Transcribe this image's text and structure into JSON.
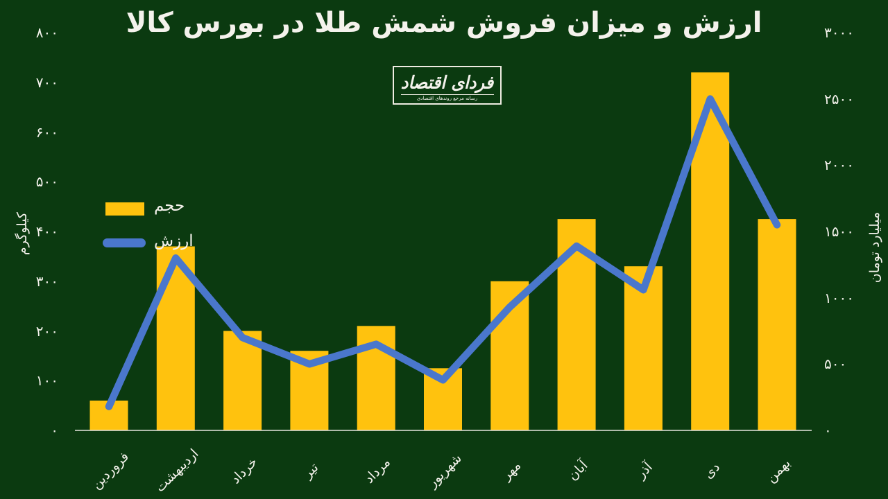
{
  "title": "ارزش و میزان فروش شمش طلا در بورس کالا",
  "logo": {
    "name": "فردای اقتصاد",
    "tagline": "رسانه مرجع روندهای اقتصادی"
  },
  "legend": {
    "items": [
      {
        "label": "حجم",
        "marker": "bar-swatch"
      },
      {
        "label": "ارزش",
        "marker": "line-swatch"
      }
    ]
  },
  "colors": {
    "background": "#0b3a10",
    "bar": "#ffc20e",
    "line": "#4a77cc",
    "text": "#f4f2ec",
    "axis_line": "#e8e6df"
  },
  "chart_data": {
    "type": "bar+line combo",
    "title": "ارزش و میزان فروش شمش طلا در بورس کالا",
    "categories": [
      "فروردین",
      "اردیبهشت",
      "خرداد",
      "تیر",
      "مرداد",
      "شهریور",
      "مهر",
      "آبان",
      "آذر",
      "دی",
      "بهمن"
    ],
    "series": [
      {
        "name": "حجم",
        "type": "bar",
        "axis": "left",
        "unit": "کیلوگرم",
        "values": [
          60,
          370,
          200,
          160,
          210,
          125,
          300,
          425,
          330,
          720,
          425
        ]
      },
      {
        "name": "ارزش",
        "type": "line",
        "axis": "right",
        "unit": "میلیارد تومان",
        "values": [
          180,
          1300,
          700,
          500,
          650,
          380,
          930,
          1390,
          1060,
          2500,
          1550
        ]
      }
    ],
    "left_axis": {
      "label": "کیلوگرم",
      "min": 0,
      "max": 800,
      "tick_step": 100,
      "tick_labels": [
        "۰",
        "۱۰۰",
        "۲۰۰",
        "۳۰۰",
        "۴۰۰",
        "۵۰۰",
        "۶۰۰",
        "۷۰۰",
        "۸۰۰"
      ]
    },
    "right_axis": {
      "label": "میلیارد تومان",
      "min": 0,
      "max": 3000,
      "tick_step": 500,
      "tick_labels": [
        "۰",
        "۵۰۰",
        "۱۰۰۰",
        "۱۵۰۰",
        "۲۰۰۰",
        "۲۵۰۰",
        "۳۰۰۰"
      ]
    },
    "grid": false,
    "legend_position": "upper-left"
  }
}
